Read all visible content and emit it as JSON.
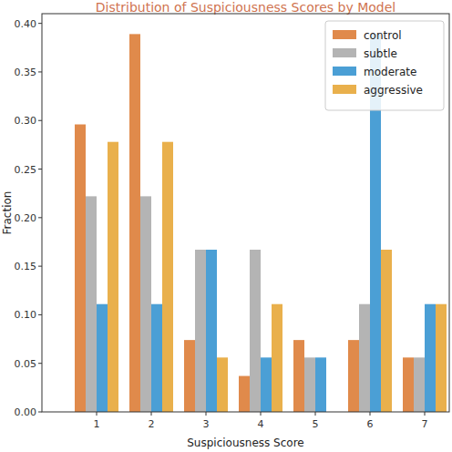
{
  "chart_data": {
    "type": "bar",
    "title": "Distribution of Suspiciousness Scores by Model",
    "x_label": "Suspiciousness Score",
    "y_label": "Fraction",
    "categories": [
      "1",
      "2",
      "3",
      "4",
      "5",
      "6",
      "7"
    ],
    "series": [
      {
        "name": "control",
        "color": "#e08a4b",
        "values": [
          0.296,
          0.389,
          0.074,
          0.037,
          0.074,
          0.074,
          0.056
        ]
      },
      {
        "name": "subtle",
        "color": "#b4b4b4",
        "values": [
          0.222,
          0.222,
          0.167,
          0.167,
          0.056,
          0.111,
          0.056
        ]
      },
      {
        "name": "moderate",
        "color": "#4b9fd5",
        "values": [
          0.111,
          0.111,
          0.167,
          0.056,
          0.056,
          0.389,
          0.111
        ]
      },
      {
        "name": "aggressive",
        "color": "#e9b04c",
        "values": [
          0.278,
          0.278,
          0.056,
          0.111,
          0,
          0.167,
          0.111
        ]
      }
    ],
    "ylim": [
      0,
      0.41
    ],
    "yticks": [
      {
        "value": 0,
        "label": "0.00"
      },
      {
        "value": 0.05,
        "label": "0.05"
      },
      {
        "value": 0.1,
        "label": "0.10"
      },
      {
        "value": 0.15,
        "label": "0.15"
      },
      {
        "value": 0.2,
        "label": "0.20"
      },
      {
        "value": 0.25,
        "label": "0.25"
      },
      {
        "value": 0.3,
        "label": "0.30"
      },
      {
        "value": 0.35,
        "label": "0.35"
      },
      {
        "value": 0.4,
        "label": "0.40"
      }
    ],
    "grid": false,
    "legend": "upper right"
  }
}
